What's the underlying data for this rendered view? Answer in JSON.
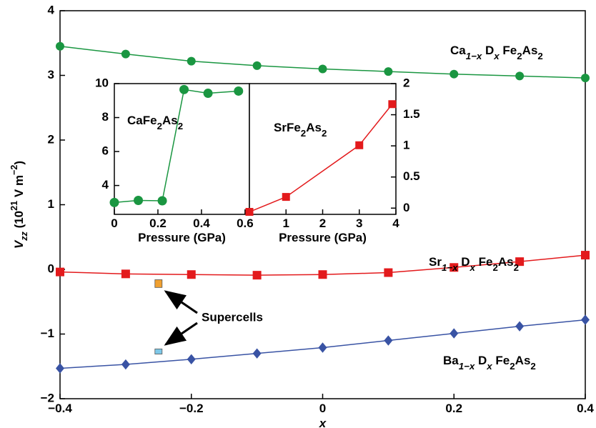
{
  "chart_data": [
    {
      "type": "line",
      "xlabel": [
        {
          "text": "x",
          "style": "italic"
        }
      ],
      "ylabel": [
        {
          "text": "V",
          "style": "italic"
        },
        {
          "text": "zz",
          "style": "sub-italic"
        },
        {
          "text": " (10",
          "style": ""
        },
        {
          "text": "21",
          "style": "sup"
        },
        {
          "text": " V m",
          "style": ""
        },
        {
          "text": "−2",
          "style": "sup"
        },
        {
          "text": ")",
          "style": ""
        }
      ],
      "xlim": [
        -0.4,
        0.4
      ],
      "ylim": [
        -2,
        4
      ],
      "xticks": [
        {
          "value": -0.4,
          "label": "−0.4"
        },
        {
          "value": -0.2,
          "label": "−0.2"
        },
        0,
        0.2,
        0.4
      ],
      "yticks": [
        {
          "value": -2,
          "label": "−2"
        },
        {
          "value": -1,
          "label": "−1"
        },
        0,
        1,
        2,
        3,
        4
      ],
      "x": [
        -0.4,
        -0.3,
        -0.2,
        -0.1,
        0,
        0.1,
        0.2,
        0.3,
        0.4
      ],
      "series": [
        {
          "name": [
            {
              "text": "Ca",
              "style": ""
            },
            {
              "text": "1−x",
              "style": "sub-mixed"
            },
            {
              "text": " D",
              "style": ""
            },
            {
              "text": "x",
              "style": "sub-italic"
            },
            {
              "text": " Fe",
              "style": ""
            },
            {
              "text": "2",
              "style": "sub"
            },
            {
              "text": "As",
              "style": ""
            },
            {
              "text": "2",
              "style": "sub"
            }
          ],
          "color": "#1a9641",
          "marker": "circle",
          "values": [
            3.45,
            3.33,
            3.22,
            3.15,
            3.1,
            3.06,
            3.02,
            2.99,
            2.96
          ]
        },
        {
          "name": [
            {
              "text": "Sr",
              "style": ""
            },
            {
              "text": "1−x",
              "style": "sub-mixed"
            },
            {
              "text": " D",
              "style": ""
            },
            {
              "text": "x",
              "style": "sub-italic"
            },
            {
              "text": " Fe",
              "style": ""
            },
            {
              "text": "2",
              "style": "sub"
            },
            {
              "text": "As",
              "style": ""
            },
            {
              "text": "2",
              "style": "sub"
            }
          ],
          "color": "#e31a1c",
          "marker": "square",
          "values": [
            -0.04,
            -0.07,
            -0.08,
            -0.09,
            -0.08,
            -0.05,
            0.03,
            0.12,
            0.22
          ]
        },
        {
          "name": [
            {
              "text": "Ba",
              "style": ""
            },
            {
              "text": "1−x",
              "style": "sub-mixed"
            },
            {
              "text": " D",
              "style": ""
            },
            {
              "text": "x",
              "style": "sub-italic"
            },
            {
              "text": " Fe",
              "style": ""
            },
            {
              "text": "2",
              "style": "sub"
            },
            {
              "text": "As",
              "style": ""
            },
            {
              "text": "2",
              "style": "sub"
            }
          ],
          "color": "#3953a4",
          "marker": "diamond",
          "values": [
            -1.53,
            -1.47,
            -1.39,
            -1.3,
            -1.21,
            -1.1,
            -0.99,
            -0.88,
            -0.78
          ]
        }
      ],
      "supercells": {
        "label": "Supercells",
        "x": [
          -0.25,
          -0.25
        ],
        "values": [
          -0.22,
          -1.27
        ],
        "errors": [
          0.06,
          0.04
        ],
        "colors": [
          "#f0a030",
          "#7ec8e8"
        ]
      }
    },
    {
      "type": "line",
      "title": [
        {
          "text": "CaFe",
          "style": ""
        },
        {
          "text": "2",
          "style": "sub"
        },
        {
          "text": "As",
          "style": ""
        },
        {
          "text": "2",
          "style": "sub"
        }
      ],
      "xlabel": [
        {
          "text": "Pressure (GPa)",
          "style": ""
        }
      ],
      "xlim": [
        0,
        0.62
      ],
      "ylim": [
        2.3,
        10
      ],
      "xticks": [
        0,
        0.2,
        0.4,
        0.6
      ],
      "yticks": [
        4,
        6,
        8,
        10
      ],
      "x": [
        0,
        0.11,
        0.22,
        0.32,
        0.43,
        0.57
      ],
      "series": [
        {
          "color": "#1a9641",
          "marker": "circle",
          "values": [
            3.0,
            3.12,
            3.1,
            9.65,
            9.43,
            9.56
          ]
        }
      ]
    },
    {
      "type": "line",
      "title": [
        {
          "text": "SrFe",
          "style": ""
        },
        {
          "text": "2",
          "style": "sub"
        },
        {
          "text": "As",
          "style": ""
        },
        {
          "text": "2",
          "style": "sub"
        }
      ],
      "xlabel": [
        {
          "text": "Pressure (GPa)",
          "style": ""
        }
      ],
      "xlim": [
        0,
        4
      ],
      "ylim": [
        -0.1,
        2
      ],
      "xticks": [
        1,
        2,
        3,
        4
      ],
      "yticks": [
        0,
        0.5,
        1,
        1.5,
        2
      ],
      "x": [
        0,
        1,
        3,
        3.9
      ],
      "series": [
        {
          "color": "#e31a1c",
          "marker": "square",
          "values": [
            -0.06,
            0.18,
            1.01,
            1.67
          ]
        }
      ]
    }
  ]
}
